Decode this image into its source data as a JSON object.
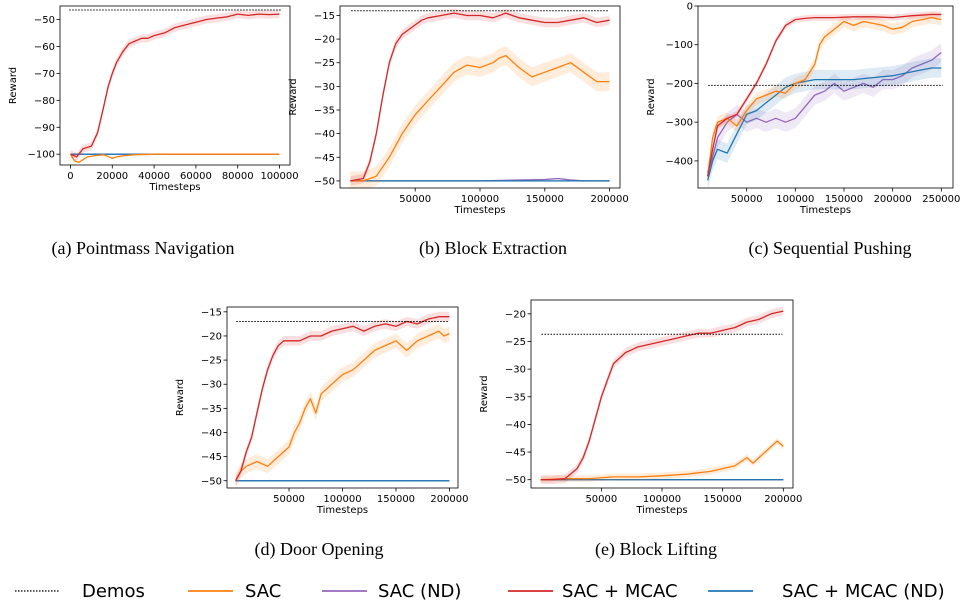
{
  "legend": [
    {
      "name": "Demos",
      "color": "#000000",
      "dash": "1.5,1.5"
    },
    {
      "name": "SAC",
      "color": "#ff7f0e"
    },
    {
      "name": "SAC (ND)",
      "color": "#9467bd"
    },
    {
      "name": "SAC + MCAC",
      "color": "#d62728"
    },
    {
      "name": "SAC + MCAC (ND)",
      "color": "#1f77b4"
    }
  ],
  "chart_data": [
    {
      "type": "line",
      "caption": "(a)  Pointmass Navigation",
      "xlabel": "Timesteps",
      "ylabel": "Reward",
      "xlim": [
        -5000,
        105000
      ],
      "ylim": [
        -104,
        -45
      ],
      "xticks": [
        0,
        20000,
        40000,
        60000,
        80000,
        100000
      ],
      "yticks": [
        -100,
        -90,
        -80,
        -70,
        -60,
        -50
      ],
      "demo": -46.5,
      "series": [
        {
          "name": "SAC + MCAC",
          "band": 1.5,
          "x": [
            0,
            3000,
            6000,
            10000,
            13000,
            16000,
            18000,
            20000,
            22000,
            25000,
            28000,
            31000,
            34000,
            37000,
            40000,
            45000,
            50000,
            55000,
            60000,
            65000,
            70000,
            75000,
            80000,
            85000,
            90000,
            95000,
            100000
          ],
          "y": [
            -100,
            -101,
            -98,
            -97,
            -92,
            -82,
            -75,
            -70,
            -66,
            -62,
            -59,
            -58,
            -57,
            -57,
            -56,
            -55,
            -53,
            -52,
            -51,
            -50,
            -49.5,
            -49,
            -48,
            -48.5,
            -48,
            -48.2,
            -48
          ]
        },
        {
          "name": "SAC",
          "band": 0.3,
          "x": [
            0,
            2000,
            4000,
            8000,
            12000,
            16000,
            20000,
            22000,
            26000,
            30000,
            40000,
            60000,
            100000
          ],
          "y": [
            -100,
            -102.5,
            -103,
            -101,
            -100.5,
            -100.2,
            -101.5,
            -101,
            -100.5,
            -100.2,
            -100,
            -100,
            -100
          ]
        },
        {
          "name": "SAC (ND)",
          "band": 0,
          "x": [
            0,
            100000
          ],
          "y": [
            -100,
            -100
          ]
        },
        {
          "name": "SAC + MCAC (ND)",
          "band": 0,
          "x": [
            0,
            100000
          ],
          "y": [
            -100,
            -100
          ]
        }
      ]
    },
    {
      "type": "line",
      "caption": "(b)  Block Extraction",
      "xlabel": "Timesteps",
      "ylabel": "Reward",
      "xlim": [
        -8000,
        208000
      ],
      "ylim": [
        -51.5,
        -13
      ],
      "xticks": [
        50000,
        100000,
        150000,
        200000
      ],
      "yticks": [
        -50,
        -45,
        -40,
        -35,
        -30,
        -25,
        -20,
        -15
      ],
      "demo": -14,
      "series": [
        {
          "name": "SAC + MCAC",
          "band": 1,
          "x": [
            0,
            10000,
            15000,
            20000,
            25000,
            30000,
            35000,
            40000,
            45000,
            50000,
            55000,
            60000,
            70000,
            80000,
            90000,
            100000,
            110000,
            120000,
            125000,
            130000,
            140000,
            150000,
            160000,
            170000,
            180000,
            190000,
            200000
          ],
          "y": [
            -50,
            -49.5,
            -46,
            -40,
            -32,
            -25,
            -21,
            -19,
            -18,
            -17,
            -16,
            -15.5,
            -15,
            -14.5,
            -15,
            -15,
            -15.5,
            -14.5,
            -15,
            -15.5,
            -16,
            -16.5,
            -16.5,
            -16,
            -15.5,
            -16.5,
            -16
          ]
        },
        {
          "name": "SAC",
          "band": 2,
          "x": [
            0,
            10000,
            20000,
            30000,
            40000,
            50000,
            60000,
            70000,
            80000,
            90000,
            100000,
            110000,
            115000,
            120000,
            130000,
            140000,
            150000,
            160000,
            170000,
            180000,
            190000,
            200000
          ],
          "y": [
            -50,
            -50,
            -49,
            -45,
            -40,
            -36,
            -33,
            -30,
            -27,
            -25.5,
            -26,
            -25,
            -24,
            -23.5,
            -26,
            -28,
            -27,
            -26,
            -25,
            -27,
            -29,
            -29
          ]
        },
        {
          "name": "SAC (ND)",
          "band": 0.2,
          "x": [
            0,
            50000,
            100000,
            150000,
            160000,
            170000,
            180000,
            200000
          ],
          "y": [
            -50,
            -50,
            -50,
            -49.7,
            -49.5,
            -49.8,
            -50,
            -50
          ]
        },
        {
          "name": "SAC + MCAC (ND)",
          "band": 0.2,
          "x": [
            0,
            200000
          ],
          "y": [
            -50,
            -50
          ]
        }
      ]
    },
    {
      "type": "line",
      "caption": "(c)  Sequential Pushing",
      "xlabel": "Timesteps",
      "ylabel": "Reward",
      "xlim": [
        0,
        262000
      ],
      "ylim": [
        -470,
        0
      ],
      "xticks": [
        50000,
        100000,
        150000,
        200000,
        250000
      ],
      "yticks": [
        -400,
        -300,
        -200,
        -100,
        0
      ],
      "demo": -205,
      "series": [
        {
          "name": "SAC + MCAC",
          "band": 8,
          "x": [
            10000,
            15000,
            20000,
            30000,
            40000,
            50000,
            60000,
            70000,
            80000,
            90000,
            100000,
            110000,
            120000,
            140000,
            160000,
            180000,
            200000,
            220000,
            240000,
            250000
          ],
          "y": [
            -440,
            -370,
            -310,
            -290,
            -280,
            -240,
            -200,
            -150,
            -90,
            -50,
            -35,
            -32,
            -30,
            -30,
            -28,
            -28,
            -30,
            -25,
            -22,
            -22
          ]
        },
        {
          "name": "SAC",
          "band": 15,
          "x": [
            10000,
            15000,
            20000,
            30000,
            40000,
            50000,
            60000,
            70000,
            80000,
            90000,
            100000,
            110000,
            120000,
            125000,
            130000,
            140000,
            150000,
            160000,
            170000,
            180000,
            190000,
            200000,
            210000,
            220000,
            230000,
            240000,
            250000
          ],
          "y": [
            -440,
            -340,
            -300,
            -290,
            -310,
            -270,
            -240,
            -230,
            -220,
            -225,
            -200,
            -190,
            -150,
            -100,
            -80,
            -60,
            -40,
            -50,
            -40,
            -45,
            -50,
            -60,
            -55,
            -40,
            -35,
            -30,
            -35
          ]
        },
        {
          "name": "SAC (ND)",
          "band": 25,
          "x": [
            10000,
            15000,
            20000,
            30000,
            40000,
            50000,
            60000,
            70000,
            80000,
            90000,
            100000,
            110000,
            120000,
            130000,
            140000,
            150000,
            160000,
            170000,
            180000,
            190000,
            200000,
            210000,
            220000,
            230000,
            240000,
            250000
          ],
          "y": [
            -430,
            -390,
            -340,
            -300,
            -280,
            -300,
            -290,
            -300,
            -290,
            -300,
            -290,
            -260,
            -230,
            -220,
            -200,
            -220,
            -210,
            -200,
            -210,
            -190,
            -190,
            -180,
            -160,
            -150,
            -140,
            -120
          ]
        },
        {
          "name": "SAC + MCAC (ND)",
          "band": 25,
          "x": [
            10000,
            15000,
            20000,
            30000,
            40000,
            50000,
            60000,
            70000,
            80000,
            90000,
            100000,
            110000,
            120000,
            140000,
            160000,
            180000,
            200000,
            220000,
            240000,
            250000
          ],
          "y": [
            -450,
            -400,
            -370,
            -380,
            -330,
            -280,
            -270,
            -250,
            -230,
            -210,
            -200,
            -195,
            -190,
            -190,
            -190,
            -185,
            -180,
            -170,
            -160,
            -160
          ]
        }
      ]
    },
    {
      "type": "line",
      "caption": "(d)  Door Opening",
      "xlabel": "Timesteps",
      "ylabel": "Reward",
      "xlim": [
        -8000,
        208000
      ],
      "ylim": [
        -51.5,
        -14
      ],
      "xticks": [
        50000,
        100000,
        150000,
        200000
      ],
      "yticks": [
        -50,
        -45,
        -40,
        -35,
        -30,
        -25,
        -20,
        -15
      ],
      "demo": -17,
      "series": [
        {
          "name": "SAC + MCAC",
          "band": 1,
          "x": [
            0,
            5000,
            10000,
            15000,
            20000,
            25000,
            30000,
            35000,
            40000,
            45000,
            50000,
            60000,
            70000,
            80000,
            90000,
            100000,
            110000,
            120000,
            130000,
            140000,
            150000,
            160000,
            170000,
            180000,
            190000,
            200000
          ],
          "y": [
            -50,
            -48,
            -44,
            -41,
            -36,
            -31,
            -27,
            -24,
            -22,
            -21,
            -21,
            -21,
            -20,
            -20,
            -19,
            -18.5,
            -18,
            -19,
            -18,
            -17.5,
            -18,
            -17,
            -17.5,
            -16.5,
            -16,
            -16
          ]
        },
        {
          "name": "SAC",
          "band": 1.5,
          "x": [
            0,
            5000,
            10000,
            20000,
            30000,
            40000,
            50000,
            55000,
            60000,
            65000,
            70000,
            75000,
            80000,
            90000,
            100000,
            110000,
            120000,
            130000,
            140000,
            150000,
            160000,
            170000,
            180000,
            190000,
            195000,
            200000
          ],
          "y": [
            -50,
            -48,
            -47,
            -46,
            -47,
            -45,
            -43,
            -40,
            -38,
            -35,
            -33,
            -36,
            -32,
            -30,
            -28,
            -27,
            -25,
            -23,
            -22,
            -21,
            -23,
            -21,
            -20,
            -19,
            -20,
            -19.5
          ]
        },
        {
          "name": "SAC (ND)",
          "band": 0,
          "x": [
            0,
            200000
          ],
          "y": [
            -50,
            -50
          ]
        },
        {
          "name": "SAC + MCAC (ND)",
          "band": 0,
          "x": [
            0,
            200000
          ],
          "y": [
            -50,
            -50
          ]
        }
      ]
    },
    {
      "type": "line",
      "caption": "(e)  Block Lifting",
      "xlabel": "Timesteps",
      "ylabel": "Reward",
      "xlim": [
        -8000,
        208000
      ],
      "ylim": [
        -51.5,
        -17.5
      ],
      "xticks": [
        50000,
        100000,
        150000,
        200000
      ],
      "yticks": [
        -50,
        -45,
        -40,
        -35,
        -30,
        -25,
        -20
      ],
      "demo": -23.7,
      "series": [
        {
          "name": "SAC + MCAC",
          "band": 0.8,
          "x": [
            0,
            10000,
            20000,
            30000,
            35000,
            40000,
            45000,
            50000,
            55000,
            60000,
            65000,
            70000,
            75000,
            80000,
            90000,
            100000,
            110000,
            120000,
            130000,
            140000,
            150000,
            160000,
            170000,
            180000,
            190000,
            200000
          ],
          "y": [
            -50,
            -50,
            -49.8,
            -48,
            -46,
            -43,
            -39,
            -35,
            -32,
            -29,
            -28,
            -27,
            -26.5,
            -26,
            -25.5,
            -25,
            -24.5,
            -24,
            -23.5,
            -23.5,
            -23,
            -22.5,
            -21.5,
            -21,
            -20,
            -19.5
          ]
        },
        {
          "name": "SAC",
          "band": 0.6,
          "x": [
            0,
            20000,
            40000,
            60000,
            80000,
            100000,
            120000,
            140000,
            150000,
            160000,
            170000,
            175000,
            180000,
            190000,
            195000,
            200000
          ],
          "y": [
            -50,
            -49.8,
            -49.8,
            -49.5,
            -49.5,
            -49.3,
            -49,
            -48.5,
            -48,
            -47.5,
            -46,
            -47,
            -46,
            -44,
            -43,
            -44
          ]
        },
        {
          "name": "SAC (ND)",
          "band": 0,
          "x": [
            0,
            200000
          ],
          "y": [
            -50,
            -50
          ]
        },
        {
          "name": "SAC + MCAC (ND)",
          "band": 0,
          "x": [
            0,
            200000
          ],
          "y": [
            -50,
            -50
          ]
        }
      ]
    }
  ]
}
